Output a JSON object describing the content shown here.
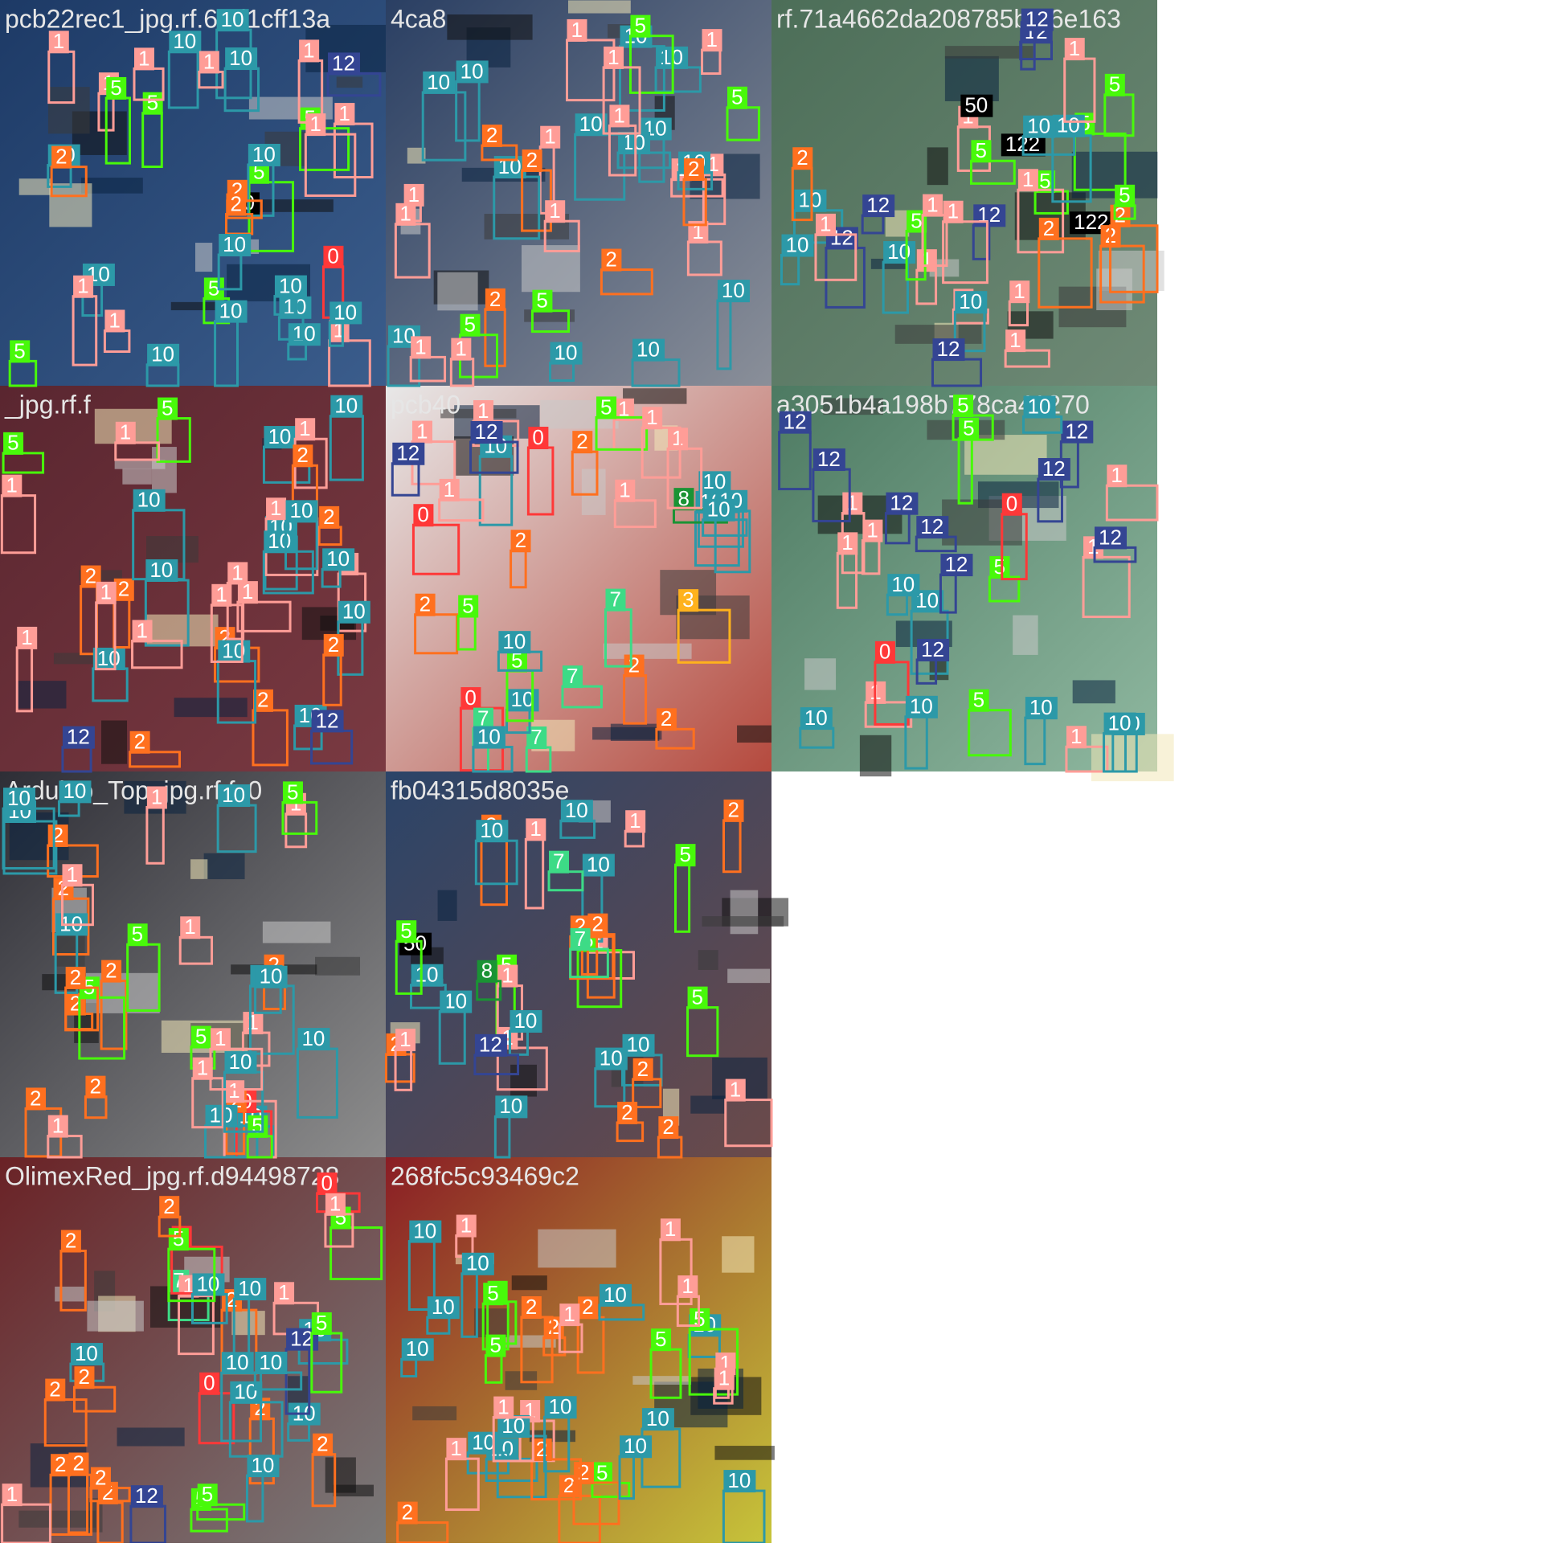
{
  "class_colors": {
    "0": "#ff3838",
    "1": "#ff9d97",
    "2": "#ff701f",
    "3": "#ffb21d",
    "5": "#48f90a",
    "7": "#3ddb86",
    "8": "#1a9334",
    "10": "#2c99a8",
    "12": "#344593"
  },
  "tiles": [
    {
      "title": "pcb22rec1_jpg.rf.68d1cff13a",
      "labels": [
        "10",
        "1",
        "10",
        "10",
        "10",
        "1",
        "5",
        "50",
        "5",
        "10",
        "5",
        "1",
        "10",
        "10",
        "1",
        "10",
        "5",
        "0",
        "12",
        "1",
        "2",
        "10",
        "1",
        "2",
        "1",
        "10",
        "1",
        "10",
        "5",
        "1",
        "10",
        "2",
        "1",
        "10",
        "5"
      ]
    },
    {
      "title": "4ca8",
      "labels": [
        "10",
        "1",
        "10",
        "5",
        "10",
        "1",
        "10",
        "5",
        "1",
        "10",
        "1",
        "10",
        "1",
        "10",
        "1",
        "10",
        "1",
        "10",
        "1",
        "2",
        "2",
        "2",
        "2",
        "10",
        "5",
        "1",
        "10",
        "1",
        "1",
        "10",
        "2",
        "1",
        "5",
        "10",
        "1"
      ]
    },
    {
      "title": "rf.71a4662da208785bef6e163",
      "labels": [
        "12",
        "5",
        "12",
        "1",
        "10",
        "1",
        "5",
        "1",
        "12",
        "122",
        "12",
        "10",
        "1",
        "122",
        "12",
        "1",
        "10",
        "1",
        "5",
        "2",
        "2",
        "2",
        "2",
        "10",
        "5",
        "50",
        "1",
        "10",
        "5",
        "12",
        "1",
        "1",
        "10",
        "5",
        "1"
      ]
    },
    {
      "title": "_jpg.rf.f",
      "labels": [
        "2",
        "2",
        "2",
        "2",
        "10",
        "1",
        "10",
        "5",
        "10",
        "2",
        "1",
        "10",
        "1",
        "10",
        "1",
        "10",
        "1",
        "1",
        "10",
        "1",
        "12",
        "10",
        "5",
        "12",
        "1",
        "10",
        "2",
        "2",
        "2",
        "10",
        "1",
        "1",
        "10",
        "1",
        "10"
      ]
    },
    {
      "title": "pcb40",
      "labels": [
        "2",
        "2",
        "10",
        "1",
        "10",
        "1",
        "10",
        "12",
        "7",
        "0",
        "7",
        "7",
        "5",
        "10",
        "8",
        "5",
        "1",
        "7",
        "10",
        "3",
        "2",
        "1",
        "0",
        "0",
        "10",
        "2",
        "2",
        "10",
        "1",
        "5",
        "1",
        "10",
        "1",
        "12"
      ]
    },
    {
      "title": "a3051b4a198b778ca41270",
      "labels": [
        "5",
        "5",
        "1",
        "12",
        "5",
        "10",
        "1",
        "10",
        "1",
        "10",
        "5",
        "1",
        "12",
        "12",
        "1",
        "10",
        "12",
        "0",
        "12",
        "10",
        "12",
        "12",
        "0",
        "12",
        "10",
        "1",
        "10",
        "1",
        "12",
        "10"
      ]
    },
    {
      "title": "Arduino_Top_jpg.rf.fc0",
      "labels": [
        "10",
        "1",
        "5",
        "2",
        "2",
        "2",
        "2",
        "2",
        "10",
        "1",
        "1",
        "5",
        "1",
        "2",
        "2",
        "0",
        "2",
        "1",
        "10",
        "5",
        "10",
        "1",
        "10",
        "10",
        "10",
        "5",
        "10",
        "1",
        "10",
        "10",
        "1",
        "5",
        "2",
        "1",
        "10"
      ]
    },
    {
      "title": "fb04315d8035e",
      "labels": [
        "10",
        "1",
        "10",
        "10",
        "1",
        "5",
        "50",
        "5",
        "1",
        "10",
        "2",
        "2",
        "2",
        "10",
        "1",
        "5",
        "10",
        "5",
        "2",
        "1",
        "2",
        "2",
        "1",
        "2",
        "2",
        "2",
        "10",
        "10",
        "12",
        "7",
        "8",
        "7",
        "1",
        "5",
        "10"
      ]
    },
    {
      "title": "OlimexRed_jpg.rf.d94498728",
      "labels": [
        "2",
        "2",
        "2",
        "2",
        "2",
        "10",
        "10",
        "10",
        "10",
        "7",
        "5",
        "1",
        "0",
        "0",
        "10",
        "0",
        "10",
        "2",
        "5",
        "1",
        "10",
        "10",
        "5",
        "5",
        "2",
        "2",
        "2",
        "2",
        "2",
        "12",
        "12",
        "1",
        "5",
        "10",
        "1"
      ]
    },
    {
      "title": "268fc5c93469c2",
      "labels": [
        "2",
        "2",
        "2",
        "2",
        "10",
        "1",
        "5",
        "10",
        "1",
        "5",
        "1",
        "10",
        "5",
        "10",
        "2",
        "10",
        "10",
        "5",
        "10",
        "1",
        "10",
        "1",
        "10",
        "1",
        "10",
        "2",
        "2",
        "10",
        "1",
        "5",
        "10",
        "1",
        "1",
        "10",
        "5"
      ]
    }
  ]
}
